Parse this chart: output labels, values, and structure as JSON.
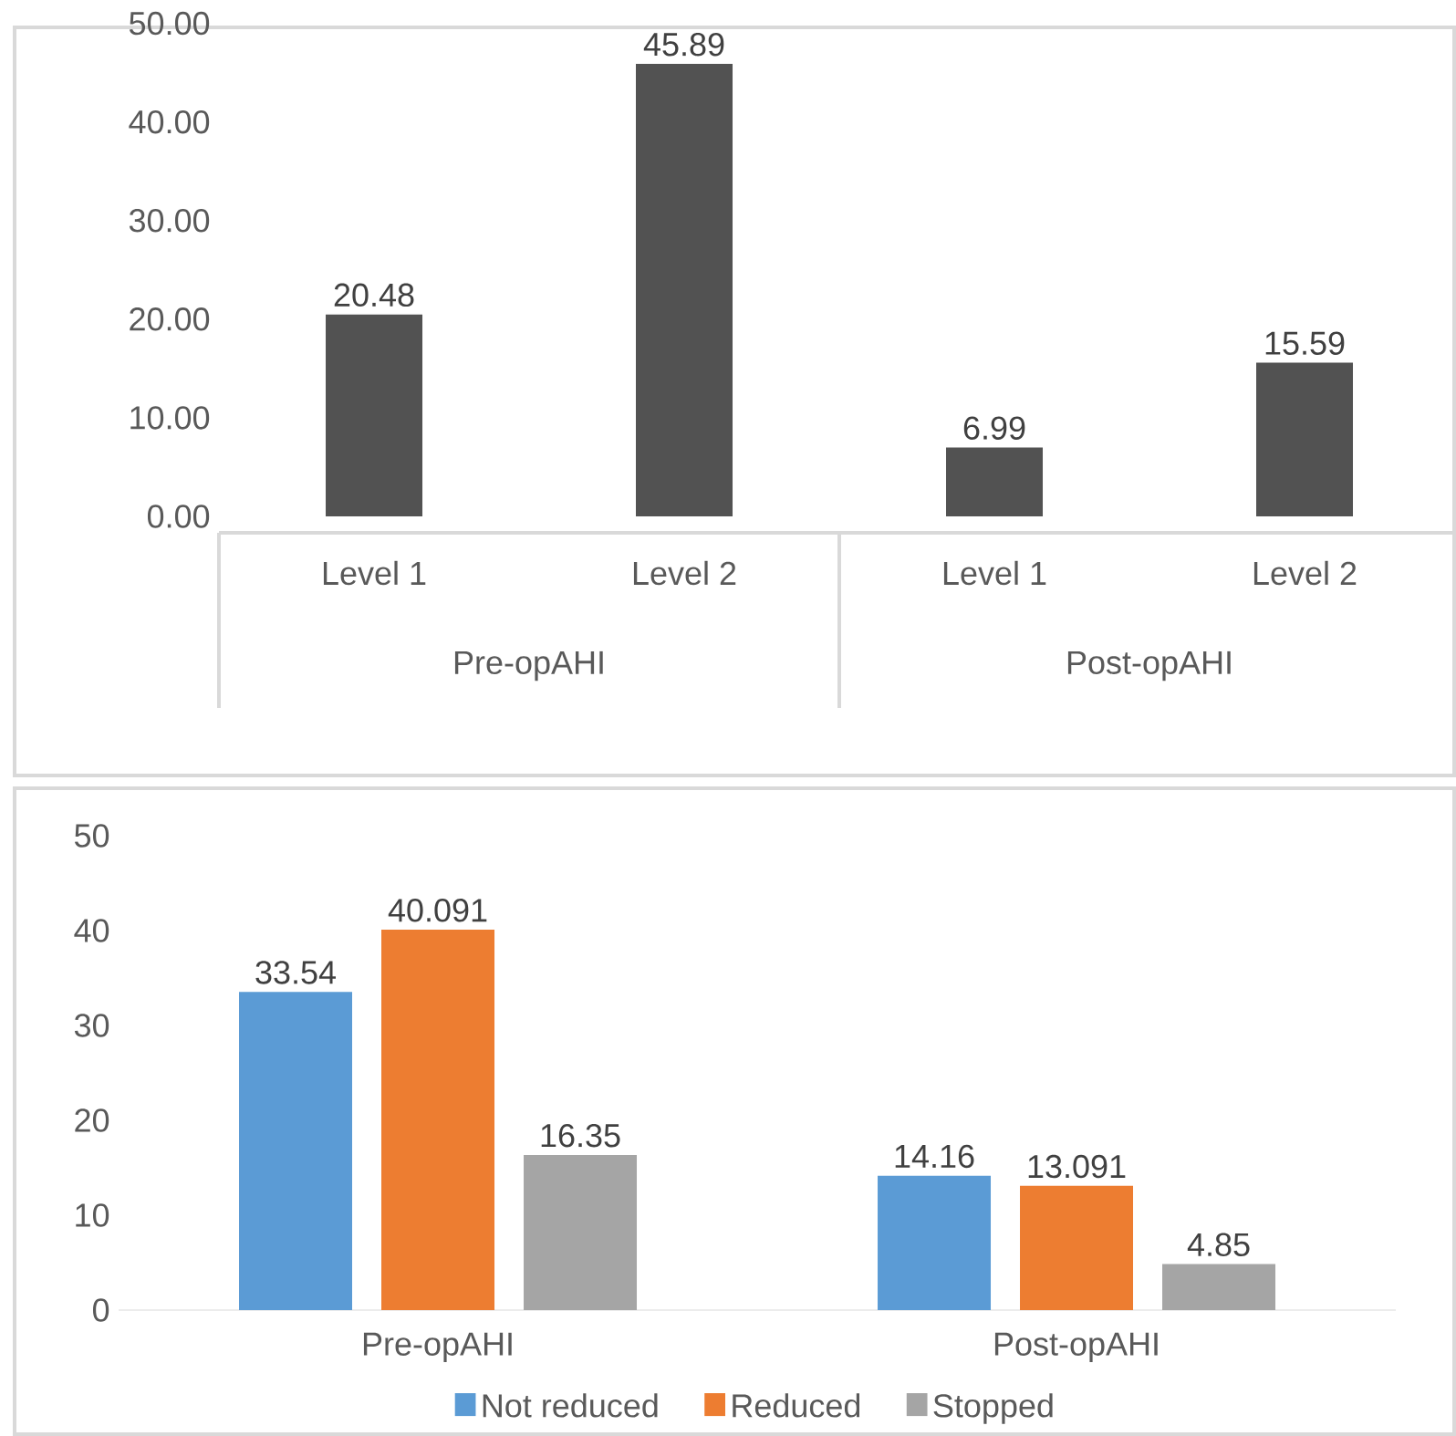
{
  "chart_data": [
    {
      "type": "bar",
      "categories": [
        "Level 1",
        "Level 2",
        "Level 1",
        "Level 2"
      ],
      "values": [
        20.48,
        45.89,
        6.99,
        15.59
      ],
      "color": "#525252",
      "ylim": [
        0,
        50
      ],
      "yticks": [
        {
          "value": 0,
          "label": "0.00"
        },
        {
          "value": 10,
          "label": "10.00"
        },
        {
          "value": 20,
          "label": "20.00"
        },
        {
          "value": 30,
          "label": "30.00"
        },
        {
          "value": 40,
          "label": "40.00"
        },
        {
          "value": 50,
          "label": "50.00"
        }
      ],
      "data_labels": true,
      "annotations": [
        "Pre-opAHI",
        "Post-opAHI"
      ]
    },
    {
      "type": "bar",
      "categories": [
        "Pre-opAHI",
        "Post-opAHI"
      ],
      "series": [
        {
          "name": "Not reduced",
          "color": "#5b9bd5",
          "values": [
            33.54,
            14.16
          ]
        },
        {
          "name": "Reduced",
          "color": "#ed7d31",
          "values": [
            40.091,
            13.091
          ]
        },
        {
          "name": "Stopped",
          "color": "#a5a5a5",
          "values": [
            16.35,
            4.85
          ]
        }
      ],
      "ylim": [
        0,
        50
      ],
      "yticks": [
        0,
        10,
        20,
        30,
        40,
        50
      ],
      "data_labels": true,
      "legend": "bottom"
    }
  ]
}
